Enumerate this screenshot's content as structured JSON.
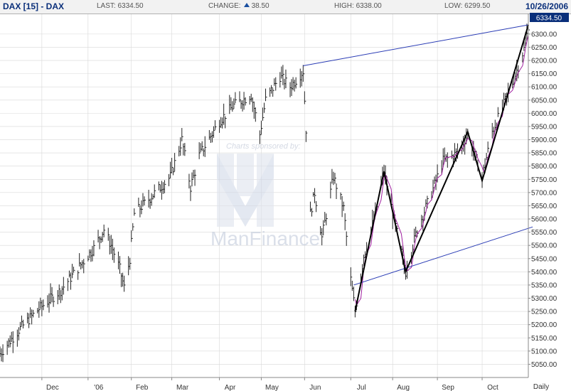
{
  "header": {
    "symbol": "DAX [15] - DAX",
    "last_label": "LAST:",
    "last_value": "6334.50",
    "change_label": "CHANGE:",
    "change_value": "38.50",
    "high_label": "HIGH:",
    "high_value": "6338.00",
    "low_label": "LOW:",
    "low_value": "6299.50",
    "date": "10/26/2006"
  },
  "watermark": {
    "sponsor_text": "Charts sponsored by:",
    "brand_text": "ManFinance"
  },
  "colors": {
    "bars": "#222222",
    "channel_lines": "#2a3cb5",
    "zigzag": "#000000",
    "moving_average": "#a020a0",
    "price_box": "#0a2f7a",
    "grid": "#d8d8d8"
  },
  "chart_data": {
    "type": "line",
    "title": "DAX [15] - DAX",
    "xlabel": "Daily",
    "ylabel": "",
    "ylim": [
      5000,
      6375
    ],
    "y_ticks": [
      5050,
      5100,
      5150,
      5200,
      5250,
      5300,
      5350,
      5400,
      5450,
      5500,
      5550,
      5600,
      5650,
      5700,
      5750,
      5800,
      5850,
      5900,
      5950,
      6000,
      6050,
      6100,
      6150,
      6200,
      6250,
      6300
    ],
    "x_tick_labels": [
      {
        "label": "Dec",
        "date": "2005-12-01"
      },
      {
        "label": "'06",
        "date": "2006-01-02"
      },
      {
        "label": "Feb",
        "date": "2006-02-01"
      },
      {
        "label": "Mar",
        "date": "2006-03-01"
      },
      {
        "label": "Apr",
        "date": "2006-04-03"
      },
      {
        "label": "May",
        "date": "2006-05-02"
      },
      {
        "label": "Jun",
        "date": "2006-06-01"
      },
      {
        "label": "Jul",
        "date": "2006-07-03"
      },
      {
        "label": "Aug",
        "date": "2006-08-01"
      },
      {
        "label": "Sep",
        "date": "2006-09-01"
      },
      {
        "label": "Oct",
        "date": "2006-10-02"
      }
    ],
    "x_range": [
      "2005-11-02",
      "2006-11-03"
    ],
    "last_price_label": "6334.50",
    "grid": true,
    "price_series": {
      "name": "DAX",
      "points": [
        [
          "2005-11-02",
          5090
        ],
        [
          "2005-11-15",
          5180
        ],
        [
          "2005-11-29",
          5260
        ],
        [
          "2005-12-14",
          5330
        ],
        [
          "2005-12-27",
          5420
        ],
        [
          "2006-01-06",
          5490
        ],
        [
          "2006-01-13",
          5560
        ],
        [
          "2006-01-18",
          5500
        ],
        [
          "2006-01-24",
          5410
        ],
        [
          "2006-01-27",
          5340
        ],
        [
          "2006-01-31",
          5450
        ],
        [
          "2006-02-03",
          5620
        ],
        [
          "2006-02-14",
          5680
        ],
        [
          "2006-02-28",
          5760
        ],
        [
          "2006-03-08",
          5900
        ],
        [
          "2006-03-14",
          5720
        ],
        [
          "2006-03-20",
          5840
        ],
        [
          "2006-04-03",
          5970
        ],
        [
          "2006-04-13",
          6030
        ],
        [
          "2006-04-25",
          6070
        ],
        [
          "2006-05-01",
          5920
        ],
        [
          "2006-05-05",
          6050
        ],
        [
          "2006-05-15",
          6140
        ],
        [
          "2006-05-22",
          6100
        ],
        [
          "2006-05-31",
          6160
        ],
        [
          "2006-06-02",
          5940
        ],
        [
          "2006-06-05",
          5620
        ],
        [
          "2006-06-08",
          5700
        ],
        [
          "2006-06-13",
          5530
        ],
        [
          "2006-06-21",
          5760
        ],
        [
          "2006-06-28",
          5640
        ],
        [
          "2006-07-03",
          5370
        ],
        [
          "2006-07-06",
          5250
        ],
        [
          "2006-07-12",
          5460
        ],
        [
          "2006-07-20",
          5620
        ],
        [
          "2006-07-26",
          5780
        ],
        [
          "2006-08-01",
          5620
        ],
        [
          "2006-08-10",
          5400
        ],
        [
          "2006-08-18",
          5560
        ],
        [
          "2006-08-28",
          5700
        ],
        [
          "2006-09-05",
          5820
        ],
        [
          "2006-09-15",
          5850
        ],
        [
          "2006-09-22",
          5920
        ],
        [
          "2006-10-02",
          5760
        ],
        [
          "2006-10-09",
          5930
        ],
        [
          "2006-10-16",
          6020
        ],
        [
          "2006-10-24",
          6130
        ],
        [
          "2006-11-01",
          6260
        ],
        [
          "2006-11-03",
          6334.5
        ]
      ]
    },
    "zigzag": {
      "name": "Zigzag",
      "points": [
        [
          "2006-07-06",
          5250
        ],
        [
          "2006-07-26",
          5780
        ],
        [
          "2006-08-10",
          5400
        ],
        [
          "2006-09-22",
          5930
        ],
        [
          "2006-10-02",
          5745
        ],
        [
          "2006-11-03",
          6334.5
        ]
      ]
    },
    "upper_channel": {
      "name": "Upper channel",
      "points": [
        [
          "2006-05-31",
          6180
        ],
        [
          "2006-11-03",
          6334.5
        ]
      ]
    },
    "lower_channel": {
      "name": "Lower channel",
      "points": [
        [
          "2006-07-05",
          5350
        ],
        [
          "2006-11-06",
          5570
        ]
      ]
    }
  }
}
